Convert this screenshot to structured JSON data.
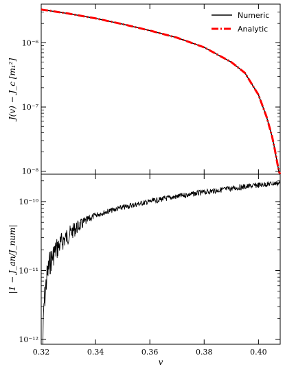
{
  "chart_data": [
    {
      "type": "line",
      "panel": "top",
      "xlabel": "",
      "ylabel": "J(v) − J_c [m_1^2]",
      "yscale": "log",
      "xlim": [
        0.32,
        0.408
      ],
      "ylim": [
        9e-09,
        4e-06
      ],
      "ytick_labels": [
        "10⁻⁸",
        "10⁻⁷",
        "10⁻⁶"
      ],
      "ytick_values": [
        1e-08,
        1e-07,
        1e-06
      ],
      "legend_placement": "top-right",
      "series": [
        {
          "name": "Numeric",
          "color": "#000000",
          "x": [
            0.32,
            0.33,
            0.34,
            0.35,
            0.36,
            0.37,
            0.38,
            0.39,
            0.395,
            0.4,
            0.403,
            0.405,
            0.406,
            0.407,
            0.4075,
            0.408
          ],
          "y": [
            3.3e-06,
            2.85e-06,
            2.4e-06,
            1.95e-06,
            1.55e-06,
            1.2e-06,
            8.5e-07,
            5e-07,
            3.4e-07,
            1.55e-07,
            7e-08,
            3.5e-08,
            2.2e-08,
            1.3e-08,
            1e-08,
            9e-09
          ]
        },
        {
          "name": "Analytic",
          "color": "#ff0000",
          "x": [
            0.32,
            0.33,
            0.34,
            0.35,
            0.36,
            0.37,
            0.38,
            0.39,
            0.395,
            0.4,
            0.403,
            0.405,
            0.406,
            0.407,
            0.4075,
            0.408
          ],
          "y": [
            3.3e-06,
            2.85e-06,
            2.4e-06,
            1.95e-06,
            1.55e-06,
            1.2e-06,
            8.5e-07,
            5e-07,
            3.4e-07,
            1.55e-07,
            7e-08,
            3.5e-08,
            2.2e-08,
            1.3e-08,
            1e-08,
            9e-09
          ]
        }
      ]
    },
    {
      "type": "line",
      "panel": "bottom",
      "xlabel": "v",
      "ylabel": "|1 − J_an/J_num|",
      "yscale": "log",
      "xlim": [
        0.32,
        0.408
      ],
      "ylim": [
        8.5e-13,
        2.5e-10
      ],
      "xtick_labels": [
        "0.32",
        "0.34",
        "0.36",
        "0.38",
        "0.40"
      ],
      "xtick_values": [
        0.32,
        0.34,
        0.36,
        0.38,
        0.4
      ],
      "ytick_labels": [
        "10⁻¹²",
        "10⁻¹¹",
        "10⁻¹⁰"
      ],
      "ytick_values": [
        1e-12,
        1e-11,
        1e-10
      ],
      "series": [
        {
          "name": "",
          "color": "#000000",
          "x": [
            0.3205,
            0.321,
            0.322,
            0.323,
            0.325,
            0.328,
            0.332,
            0.336,
            0.34,
            0.345,
            0.35,
            0.355,
            0.36,
            0.365,
            0.37,
            0.375,
            0.38,
            0.385,
            0.39,
            0.395,
            0.4,
            0.405,
            0.408
          ],
          "y": [
            1e-12,
            5e-12,
            1.2e-11,
            1.9e-11,
            2.8e-11,
            3.8e-11,
            5e-11,
            6e-11,
            7e-11,
            8e-11,
            9e-11,
            1e-10,
            1.1e-10,
            1.2e-10,
            1.3e-10,
            1.4e-10,
            1.5e-10,
            1.6e-10,
            1.7e-10,
            1.8e-10,
            1.9e-10,
            2e-10,
            2.05e-10
          ]
        }
      ]
    }
  ]
}
